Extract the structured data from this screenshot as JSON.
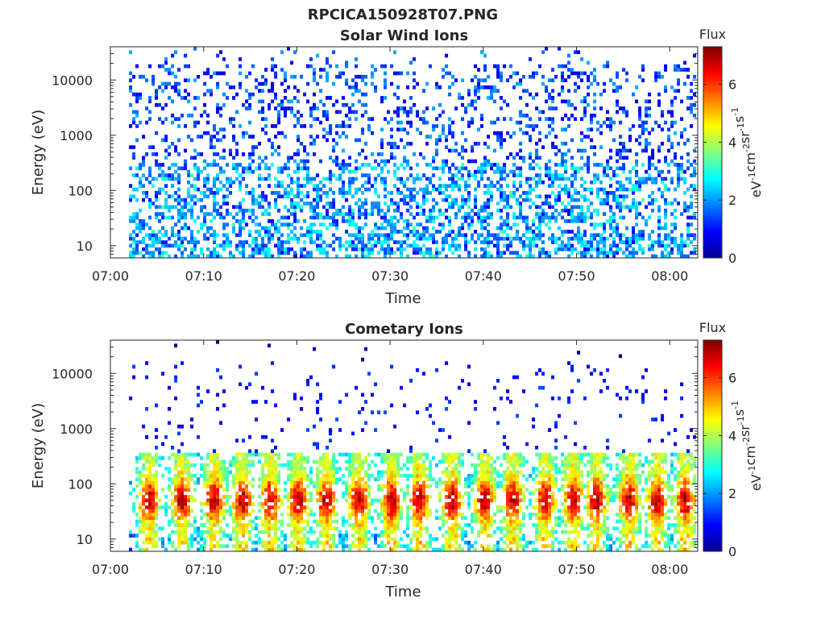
{
  "figure": {
    "title": "RPCICA150928T07.PNG"
  },
  "colormap": [
    "#00008f",
    "#0000ff",
    "#0080ff",
    "#00ffff",
    "#80ff80",
    "#ffff00",
    "#ff8000",
    "#ff0000",
    "#800000"
  ],
  "chart_data": [
    {
      "type": "heatmap",
      "title": "Solar Wind Ions",
      "xlabel": "Time",
      "ylabel": "Energy (eV)",
      "x_range": [
        "07:00",
        "08:03"
      ],
      "x_ticks": [
        "07:00",
        "07:10",
        "07:20",
        "07:30",
        "07:40",
        "07:50",
        "08:00"
      ],
      "y_scale": "log",
      "y_range": [
        6,
        40000
      ],
      "y_ticks": [
        10,
        100,
        1000,
        10000
      ],
      "y_tick_labels": [
        "10",
        "100",
        "1000",
        "10000"
      ],
      "data_start": "07:02",
      "colorbar": {
        "title": "Flux",
        "label": "eV^-1 cm^-2 sr^-1 s^-1",
        "range": [
          0,
          7.3
        ],
        "ticks": [
          "0",
          "2",
          "4",
          "6"
        ]
      },
      "pattern": "sparse low-flux (0.5-2) counts spread across 6 eV - 40 keV, denser at 10-300 eV",
      "peak_times_min": []
    },
    {
      "type": "heatmap",
      "title": "Cometary Ions",
      "xlabel": "Time",
      "ylabel": "Energy (eV)",
      "x_range": [
        "07:00",
        "08:03"
      ],
      "x_ticks": [
        "07:00",
        "07:10",
        "07:20",
        "07:30",
        "07:40",
        "07:50",
        "08:00"
      ],
      "y_scale": "log",
      "y_range": [
        6,
        40000
      ],
      "y_ticks": [
        10,
        100,
        1000,
        10000
      ],
      "y_tick_labels": [
        "10",
        "100",
        "1000",
        "10000"
      ],
      "data_start": "07:02",
      "colorbar": {
        "title": "Flux",
        "label": "eV^-1 cm^-2 sr^-1 s^-1",
        "range": [
          0,
          7.3
        ],
        "ticks": [
          "0",
          "2",
          "4",
          "6"
        ]
      },
      "pattern": "periodic bursts of high flux (up to ~6.5) at 20-300 eV, sparse low-flux counts up to 15 keV",
      "peak_times_min": [
        4,
        7.5,
        11,
        14,
        17,
        20,
        23,
        26.5,
        30,
        33,
        36.5,
        40,
        43,
        46.5,
        49.5,
        52,
        55.5,
        58.5,
        61.5
      ]
    }
  ]
}
